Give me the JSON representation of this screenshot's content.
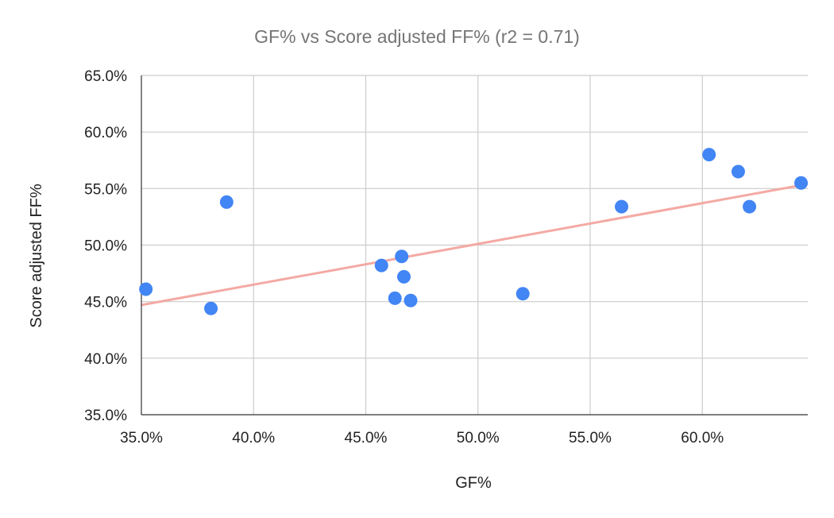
{
  "chart_data": {
    "type": "scatter",
    "title": "GF% vs Score adjusted FF% (r2 = 0.71)",
    "xlabel": "GF%",
    "ylabel": "Score adjusted FF%",
    "xlim": [
      0.35,
      0.647
    ],
    "ylim": [
      0.35,
      0.65
    ],
    "x_ticks": [
      "35.0%",
      "40.0%",
      "45.0%",
      "50.0%",
      "55.0%",
      "60.0%"
    ],
    "y_ticks": [
      "35.0%",
      "40.0%",
      "45.0%",
      "50.0%",
      "55.0%",
      "60.0%",
      "65.0%"
    ],
    "grid": true,
    "legend": "none",
    "point_color": "#4285f4",
    "trendline_color": "#f4a9a3",
    "points": [
      {
        "x": 0.352,
        "y": 0.461
      },
      {
        "x": 0.381,
        "y": 0.444
      },
      {
        "x": 0.388,
        "y": 0.538
      },
      {
        "x": 0.457,
        "y": 0.482
      },
      {
        "x": 0.463,
        "y": 0.453
      },
      {
        "x": 0.466,
        "y": 0.49
      },
      {
        "x": 0.467,
        "y": 0.472
      },
      {
        "x": 0.47,
        "y": 0.451
      },
      {
        "x": 0.52,
        "y": 0.457
      },
      {
        "x": 0.564,
        "y": 0.534
      },
      {
        "x": 0.603,
        "y": 0.58
      },
      {
        "x": 0.616,
        "y": 0.565
      },
      {
        "x": 0.621,
        "y": 0.534
      },
      {
        "x": 0.644,
        "y": 0.555
      }
    ],
    "trendline": {
      "x": [
        0.35,
        0.647
      ],
      "y": [
        0.447,
        0.554
      ]
    }
  }
}
